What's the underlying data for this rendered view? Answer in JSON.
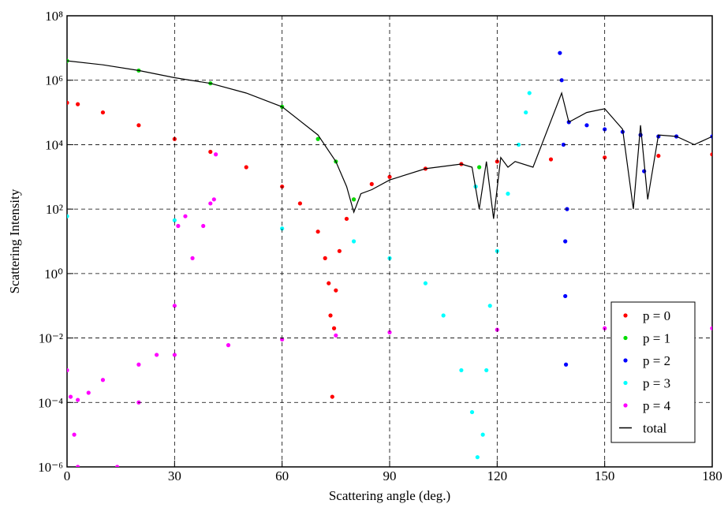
{
  "chart_data": {
    "type": "scatter",
    "x_label": "Scattering angle (deg.)",
    "y_label": "Scattering Intensity",
    "log_y": true,
    "grid": true,
    "legend": "lower right",
    "xlim": [
      0,
      180
    ],
    "xticks": [
      0,
      30,
      60,
      90,
      120,
      150,
      180
    ],
    "ylim": [
      1e-06,
      100000000
    ],
    "yticks": [
      {
        "value": 1e-06,
        "label": "10⁻⁶"
      },
      {
        "value": 0.0001,
        "label": "10⁻⁴"
      },
      {
        "value": 0.01,
        "label": "10⁻²"
      },
      {
        "value": 1,
        "label": "10⁰"
      },
      {
        "value": 100,
        "label": "10²"
      },
      {
        "value": 10000,
        "label": "10⁴"
      },
      {
        "value": 1000000,
        "label": "10⁶"
      },
      {
        "value": 100000000,
        "label": "10⁸"
      }
    ],
    "series": [
      {
        "name": "p = 0",
        "color": "#ff0000",
        "kind": "points",
        "x": [
          0,
          3,
          10,
          20,
          30,
          40,
          50,
          60,
          65,
          70,
          72,
          73,
          73.5,
          74,
          74.5,
          75,
          76,
          78,
          80,
          85,
          90,
          100,
          110,
          120,
          135,
          150,
          165,
          180
        ],
        "values": [
          200000,
          180000,
          100000,
          40000,
          15000,
          6000,
          2000,
          500,
          150,
          20,
          3,
          0.5,
          0.05,
          0.00015,
          0.02,
          0.3,
          5,
          50,
          200,
          600,
          1000,
          1800,
          2500,
          3000,
          3500,
          4000,
          4500,
          5000
        ]
      },
      {
        "name": "p = 1",
        "color": "#00dd00",
        "kind": "points",
        "x": [
          0,
          20,
          40,
          60,
          70,
          75,
          80,
          115
        ],
        "values": [
          4000000,
          2000000,
          800000,
          150000,
          15000,
          3000,
          200,
          2000
        ]
      },
      {
        "name": "p = 2",
        "color": "#0000ff",
        "kind": "points",
        "x": [
          137.5,
          138,
          138.5,
          139,
          139,
          139.2,
          139.5,
          140,
          145,
          150,
          155,
          160,
          161,
          165,
          170,
          180
        ],
        "values": [
          7000000,
          1000000,
          10000,
          10,
          0.2,
          0.0015,
          100,
          50000,
          40000,
          30000,
          25000,
          20000,
          1500,
          18000,
          18000,
          18000
        ]
      },
      {
        "name": "p = 3",
        "color": "#00ffff",
        "kind": "points",
        "x": [
          0,
          30,
          60,
          80,
          90,
          100,
          105,
          110,
          113,
          114,
          114.5,
          116,
          117,
          118,
          120,
          123,
          126,
          128,
          129
        ],
        "values": [
          60,
          45,
          25,
          10,
          3,
          0.5,
          0.05,
          0.001,
          5e-05,
          500,
          2e-06,
          1e-05,
          0.001,
          0.1,
          5,
          300,
          10000,
          100000,
          400000
        ]
      },
      {
        "name": "p = 4",
        "color": "#ff00ff",
        "kind": "points",
        "x": [
          0,
          1,
          3,
          6,
          10,
          20,
          30,
          45,
          60,
          75,
          90,
          120,
          150,
          180,
          2,
          3,
          14,
          20,
          25,
          30,
          35,
          31,
          33,
          38,
          40,
          41,
          41.5
        ],
        "values": [
          0.001,
          0.00015,
          0.00012,
          0.0002,
          0.0005,
          0.0015,
          0.003,
          0.006,
          0.009,
          0.012,
          0.015,
          0.018,
          0.02,
          0.02,
          1e-05,
          1e-06,
          1e-06,
          0.0001,
          0.003,
          0.1,
          3,
          30,
          60,
          30,
          150,
          200,
          5000
        ]
      },
      {
        "name": "total",
        "color": "#000000",
        "kind": "line",
        "x": [
          0,
          10,
          20,
          30,
          40,
          50,
          60,
          70,
          75,
          78,
          80,
          82,
          85,
          90,
          100,
          110,
          113,
          115,
          117,
          119,
          121,
          123,
          125,
          130,
          138,
          140,
          145,
          150,
          155,
          158,
          160,
          162,
          165,
          170,
          175,
          180
        ],
        "values": [
          4000000,
          3000000,
          2000000,
          1200000,
          800000,
          400000,
          150000,
          20000,
          3000,
          500,
          80,
          300,
          400,
          800,
          1800,
          2500,
          2000,
          100,
          3000,
          50,
          4000,
          2000,
          3000,
          2000,
          400000,
          50000,
          100000,
          130000,
          30000,
          100,
          40000,
          200,
          20000,
          18000,
          10000,
          18000
        ]
      }
    ]
  }
}
